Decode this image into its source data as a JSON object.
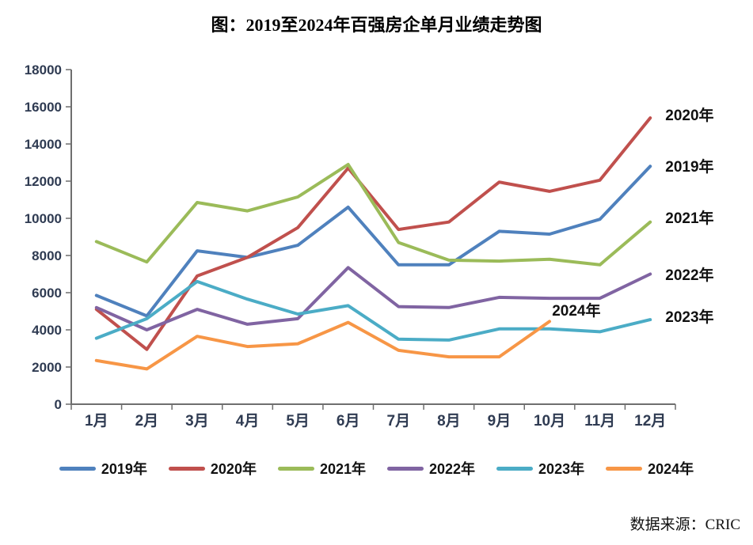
{
  "title": "图：2019至2024年百强房企单月业绩走势图",
  "source": "数据来源：CRIC",
  "chart_data": {
    "type": "line",
    "categories": [
      "1月",
      "2月",
      "3月",
      "4月",
      "5月",
      "6月",
      "7月",
      "8月",
      "9月",
      "10月",
      "11月",
      "12月"
    ],
    "series": [
      {
        "name": "2019年",
        "color": "#4F81BD",
        "values": [
          5850,
          4750,
          8250,
          7900,
          8550,
          10600,
          7500,
          7500,
          9300,
          9150,
          9950,
          12800
        ]
      },
      {
        "name": "2020年",
        "color": "#C0504D",
        "values": [
          5100,
          2950,
          6900,
          7900,
          9500,
          12700,
          9400,
          9800,
          11950,
          11450,
          12050,
          15400
        ]
      },
      {
        "name": "2021年",
        "color": "#9BBB59",
        "values": [
          8750,
          7650,
          10850,
          10400,
          11150,
          12900,
          8700,
          7750,
          7700,
          7800,
          7500,
          9800
        ]
      },
      {
        "name": "2022年",
        "color": "#8064A2",
        "values": [
          5200,
          4000,
          5100,
          4300,
          4600,
          7350,
          5250,
          5200,
          5750,
          5700,
          5700,
          7000
        ]
      },
      {
        "name": "2023年",
        "color": "#4BACC6",
        "values": [
          3550,
          4600,
          6600,
          5650,
          4850,
          5300,
          3500,
          3450,
          4050,
          4050,
          3900,
          4550
        ]
      },
      {
        "name": "2024年",
        "color": "#F79646",
        "values": [
          2350,
          1900,
          3650,
          3100,
          3250,
          4400,
          2900,
          2550,
          2550,
          4450,
          null,
          null
        ]
      }
    ],
    "ylim": [
      0,
      18000
    ],
    "ytick_step": 2000,
    "grid": false,
    "legend_position": "bottom",
    "annotations": [
      {
        "text": "2020年",
        "month": 12.3,
        "value": 15570,
        "anchor": "start"
      },
      {
        "text": "2019年",
        "month": 12.3,
        "value": 12800,
        "anchor": "start"
      },
      {
        "text": "2021年",
        "month": 12.3,
        "value": 10040,
        "anchor": "start"
      },
      {
        "text": "2022年",
        "month": 12.3,
        "value": 6980,
        "anchor": "start"
      },
      {
        "text": "2023年",
        "month": 12.3,
        "value": 4720,
        "anchor": "start"
      },
      {
        "text": "2024年",
        "month": 10.05,
        "value": 5060,
        "anchor": "start"
      }
    ]
  }
}
